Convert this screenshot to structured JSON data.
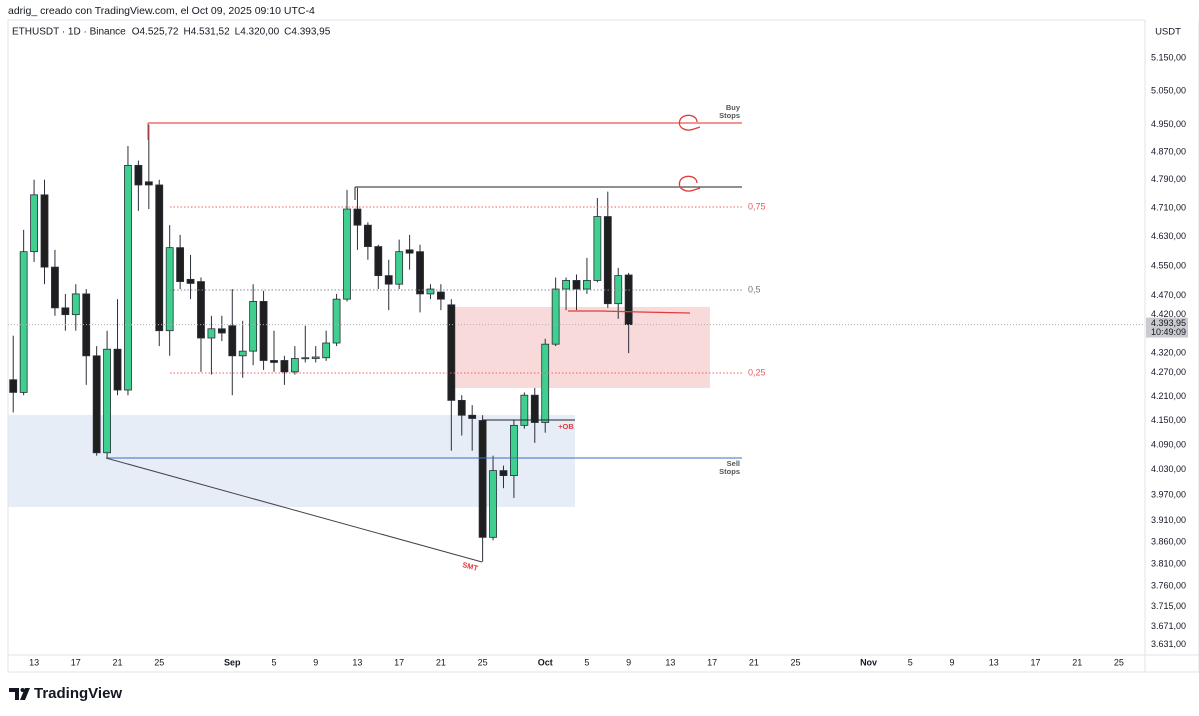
{
  "chart_data": {
    "type": "candlestick",
    "header": "adrig_ creado con TradingView.com, el Oct 09, 2025 09:10 UTC-4",
    "symbol": "ETHUSDT · 1D · Binance",
    "ohlc": [
      {
        "key": "O",
        "value": "4.525,72"
      },
      {
        "key": "H",
        "value": "4.531,52"
      },
      {
        "key": "L",
        "value": "4.320,00"
      },
      {
        "key": "C",
        "value": "4.393,95"
      }
    ],
    "currency": "USDT",
    "brand": "TradingView",
    "x": [
      "2025-08-11",
      "2025-08-12",
      "2025-08-13",
      "2025-08-14",
      "2025-08-15",
      "2025-08-16",
      "2025-08-17",
      "2025-08-18",
      "2025-08-19",
      "2025-08-20",
      "2025-08-21",
      "2025-08-22",
      "2025-08-23",
      "2025-08-24",
      "2025-08-25",
      "2025-08-26",
      "2025-08-27",
      "2025-08-28",
      "2025-08-29",
      "2025-08-30",
      "2025-08-31",
      "2025-09-01",
      "2025-09-02",
      "2025-09-03",
      "2025-09-04",
      "2025-09-05",
      "2025-09-06",
      "2025-09-07",
      "2025-09-08",
      "2025-09-09",
      "2025-09-10",
      "2025-09-11",
      "2025-09-12",
      "2025-09-13",
      "2025-09-14",
      "2025-09-15",
      "2025-09-16",
      "2025-09-17",
      "2025-09-18",
      "2025-09-19",
      "2025-09-20",
      "2025-09-21",
      "2025-09-22",
      "2025-09-23",
      "2025-09-24",
      "2025-09-25",
      "2025-09-26",
      "2025-09-27",
      "2025-09-28",
      "2025-09-29",
      "2025-09-30",
      "2025-10-01",
      "2025-10-02",
      "2025-10-03",
      "2025-10-04",
      "2025-10-05",
      "2025-10-06",
      "2025-10-07",
      "2025-10-08",
      "2025-10-09"
    ],
    "open": [
      4252,
      4220,
      4589,
      4747,
      4547,
      4438,
      4420,
      4475,
      4313,
      4071,
      4330,
      4226,
      4831,
      4784,
      4775,
      4378,
      4600,
      4514,
      4508,
      4359,
      4383,
      4391,
      4313,
      4325,
      4455,
      4301,
      4301,
      4272,
      4306,
      4306,
      4308,
      4346,
      4461,
      4707,
      4662,
      4603,
      4524,
      4501,
      4594,
      4589,
      4475,
      4480,
      4446,
      4200,
      4163,
      4150,
      3871,
      4028,
      4016,
      4138,
      4213,
      4145,
      4343,
      4488,
      4511,
      4488,
      4511,
      4686,
      4449,
      4525.72
    ],
    "high": [
      4365,
      4649,
      4790,
      4790,
      4594,
      4475,
      4501,
      4488,
      4338,
      4378,
      4461,
      4887,
      4845,
      4950,
      4790,
      4662,
      4635,
      4580,
      4519,
      4417,
      4417,
      4488,
      4404,
      4501,
      4483,
      4378,
      4313,
      4338,
      4391,
      4338,
      4378,
      4475,
      4761,
      4767,
      4670,
      4608,
      4567,
      4622,
      4635,
      4608,
      4501,
      4501,
      4461,
      4213,
      4188,
      4163,
      4064,
      4040,
      4150,
      4220,
      4231,
      4357,
      4519,
      4519,
      4527,
      4572,
      4738,
      4756,
      4545,
      4531.52
    ],
    "low": [
      4170,
      4213,
      4561,
      4501,
      4417,
      4378,
      4378,
      4239,
      4064,
      4057,
      4213,
      4213,
      4702,
      4707,
      4338,
      4313,
      4488,
      4461,
      4272,
      4265,
      4351,
      4213,
      4257,
      4289,
      4277,
      4272,
      4239,
      4265,
      4296,
      4296,
      4300,
      4338,
      4455,
      4594,
      4567,
      4488,
      4432,
      4488,
      4540,
      4426,
      4461,
      4432,
      4076,
      4113,
      4076,
      3815,
      3864,
      3986,
      3963,
      4130,
      4095,
      4120,
      4338,
      4432,
      4432,
      4475,
      4506,
      4438,
      4409,
      4320
    ],
    "close": [
      4220,
      4589,
      4747,
      4547,
      4438,
      4420,
      4475,
      4313,
      4071,
      4330,
      4226,
      4831,
      4775,
      4775,
      4378,
      4600,
      4508,
      4503,
      4359,
      4383,
      4372,
      4313,
      4325,
      4455,
      4301,
      4296,
      4272,
      4306,
      4308,
      4310,
      4346,
      4461,
      4707,
      4662,
      4603,
      4524,
      4501,
      4589,
      4585,
      4475,
      4488,
      4461,
      4200,
      4163,
      4155,
      3871,
      4028,
      4016,
      4138,
      4213,
      4145,
      4343,
      4488,
      4511,
      4488,
      4511,
      4686,
      4449,
      4524,
      4393.95
    ],
    "up_color": "#3fcf8e",
    "down_color": "#1f1f1f",
    "log": true,
    "grid": false,
    "xlim": [
      "2025-08-11",
      "2025-11-28"
    ],
    "ylim": [
      3609,
      5268
    ],
    "yticks": [
      {
        "value": 5150,
        "label": "5.150,00"
      },
      {
        "value": 5050,
        "label": "5.050,00"
      },
      {
        "value": 4950,
        "label": "4.950,00"
      },
      {
        "value": 4870,
        "label": "4.870,00"
      },
      {
        "value": 4790,
        "label": "4.790,00"
      },
      {
        "value": 4710,
        "label": "4.710,00"
      },
      {
        "value": 4630,
        "label": "4.630,00"
      },
      {
        "value": 4550,
        "label": "4.550,00"
      },
      {
        "value": 4470,
        "label": "4.470,00"
      },
      {
        "value": 4420,
        "label": "4.420,00"
      },
      {
        "value": 4320,
        "label": "4.320,00"
      },
      {
        "value": 4270,
        "label": "4.270,00"
      },
      {
        "value": 4210,
        "label": "4.210,00"
      },
      {
        "value": 4150,
        "label": "4.150,00"
      },
      {
        "value": 4090,
        "label": "4.090,00"
      },
      {
        "value": 4030,
        "label": "4.030,00"
      },
      {
        "value": 3970,
        "label": "3.970,00"
      },
      {
        "value": 3910,
        "label": "3.910,00"
      },
      {
        "value": 3860,
        "label": "3.860,00"
      },
      {
        "value": 3810,
        "label": "3.810,00"
      },
      {
        "value": 3760,
        "label": "3.760,00"
      },
      {
        "value": 3715,
        "label": "3.715,00"
      },
      {
        "value": 3671,
        "label": "3.671,00"
      },
      {
        "value": 3631,
        "label": "3.631,00"
      }
    ],
    "xticks": [
      {
        "value": "2025-08-13",
        "label": "13"
      },
      {
        "value": "2025-08-17",
        "label": "17"
      },
      {
        "value": "2025-08-21",
        "label": "21"
      },
      {
        "value": "2025-08-25",
        "label": "25"
      },
      {
        "value": "2025-09-01",
        "label": "Sep"
      },
      {
        "value": "2025-09-05",
        "label": "5"
      },
      {
        "value": "2025-09-09",
        "label": "9"
      },
      {
        "value": "2025-09-13",
        "label": "13"
      },
      {
        "value": "2025-09-17",
        "label": "17"
      },
      {
        "value": "2025-09-21",
        "label": "21"
      },
      {
        "value": "2025-09-25",
        "label": "25"
      },
      {
        "value": "2025-10-01",
        "label": "Oct"
      },
      {
        "value": "2025-10-05",
        "label": "5"
      },
      {
        "value": "2025-10-09",
        "label": "9"
      },
      {
        "value": "2025-10-13",
        "label": "13"
      },
      {
        "value": "2025-10-17",
        "label": "17"
      },
      {
        "value": "2025-10-21",
        "label": "21"
      },
      {
        "value": "2025-10-25",
        "label": "25"
      },
      {
        "value": "2025-11-01",
        "label": "Nov"
      },
      {
        "value": "2025-11-05",
        "label": "5"
      },
      {
        "value": "2025-11-09",
        "label": "9"
      },
      {
        "value": "2025-11-13",
        "label": "13"
      },
      {
        "value": "2025-11-17",
        "label": "17"
      },
      {
        "value": "2025-11-21",
        "label": "21"
      },
      {
        "value": "2025-11-25",
        "label": "25"
      }
    ],
    "last_price": {
      "value": 4393.95,
      "label": "4.393,95",
      "countdown": "10:49:09"
    },
    "annotations": {
      "buy_stops": [
        "Buy",
        "Stops"
      ],
      "sell_stops": [
        "Sell",
        "Stops"
      ],
      "fib": [
        "0,75",
        "0,5",
        "0,25"
      ],
      "smt": "SMT",
      "ob": "+OB"
    }
  }
}
